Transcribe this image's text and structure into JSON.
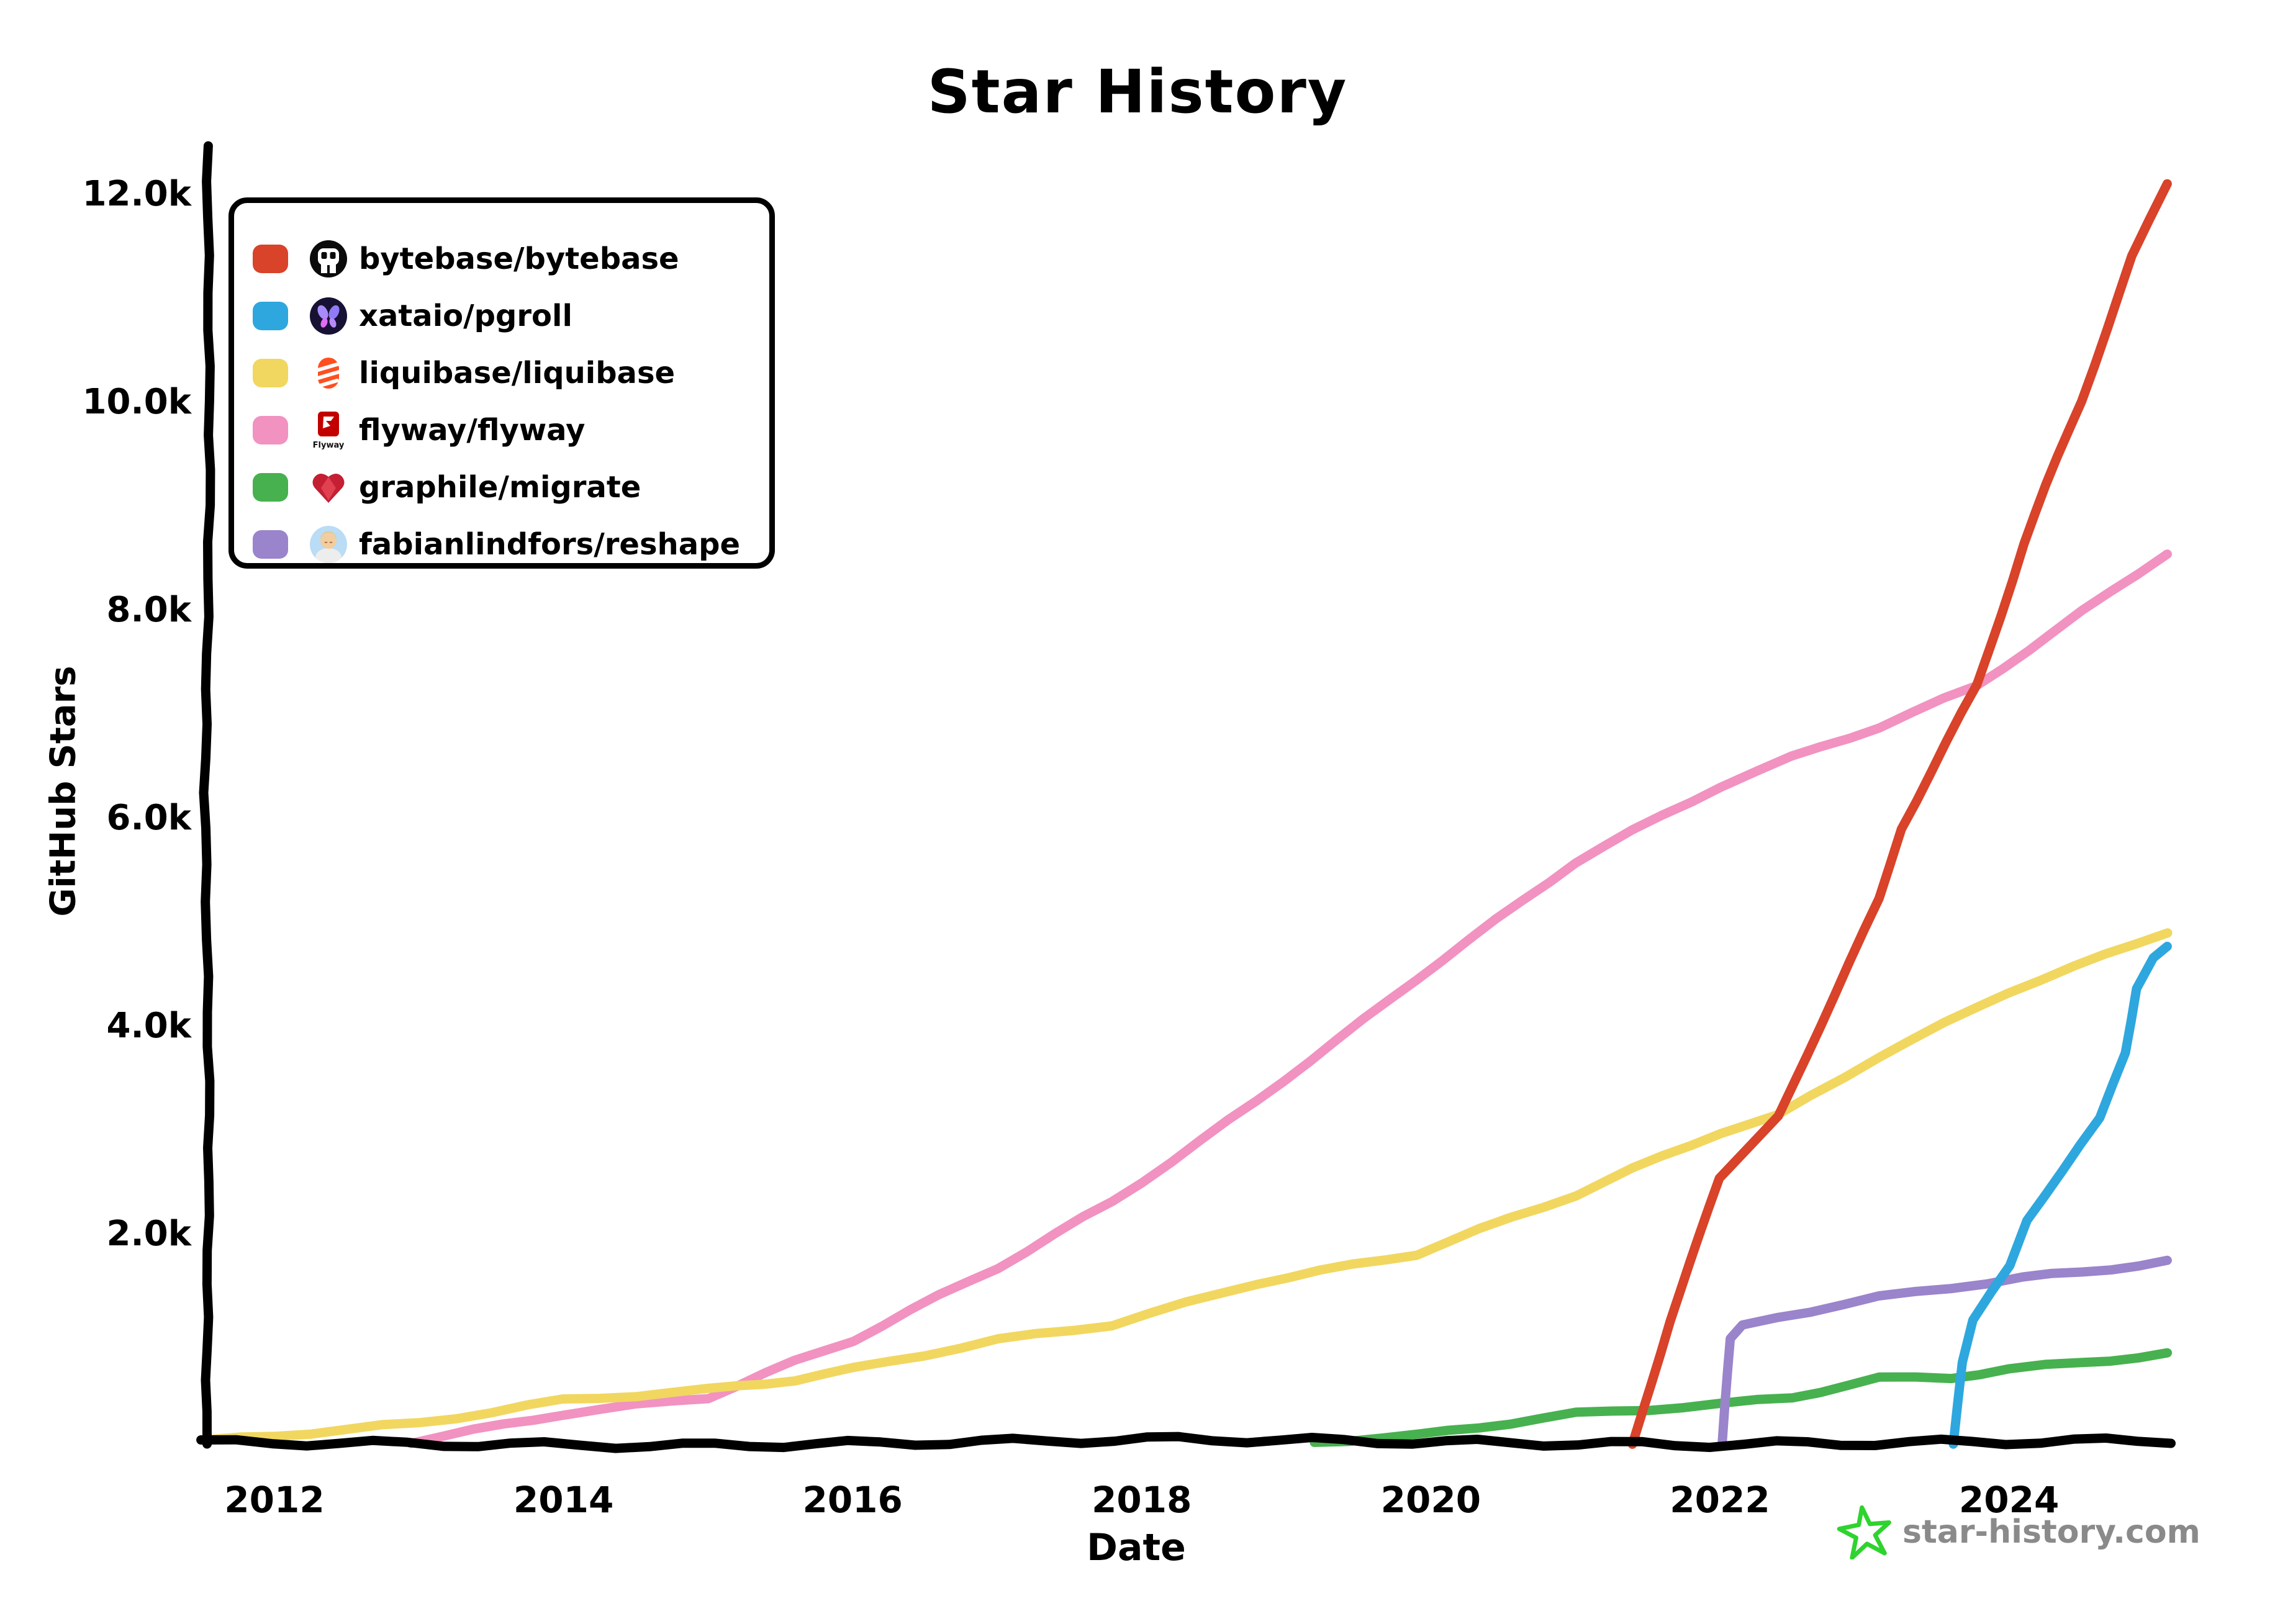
{
  "title": "Star History",
  "axes": {
    "x_label": "Date",
    "y_label": "GitHub Stars",
    "x_ticks": [
      {
        "label": "2012",
        "year": 2012
      },
      {
        "label": "2014",
        "year": 2014
      },
      {
        "label": "2016",
        "year": 2016
      },
      {
        "label": "2018",
        "year": 2018
      },
      {
        "label": "2020",
        "year": 2020
      },
      {
        "label": "2022",
        "year": 2022
      },
      {
        "label": "2024",
        "year": 2024
      }
    ],
    "y_ticks": [
      {
        "label": "2.0k",
        "value": 2
      },
      {
        "label": "4.0k",
        "value": 4
      },
      {
        "label": "6.0k",
        "value": 6
      },
      {
        "label": "8.0k",
        "value": 8
      },
      {
        "label": "10.0k",
        "value": 10
      },
      {
        "label": "12.0k",
        "value": 12
      }
    ]
  },
  "watermark": {
    "text": "star-history.com",
    "text_color": "#8a8a8a",
    "star_color": "#2fd32f"
  },
  "colors": {
    "axis": "#000000",
    "background": "#ffffff"
  },
  "chart_data": {
    "type": "line",
    "title": "Star History",
    "xlabel": "Date",
    "ylabel": "GitHub Stars",
    "xlim": [
      2011.5,
      2025.3
    ],
    "ylim": [
      0,
      12.4
    ],
    "grid": false,
    "legend_position": "top-left",
    "units": "thousands of stars",
    "series": [
      {
        "id": "bytebase",
        "label": "bytebase/bytebase",
        "color": "#d8432a",
        "icon": "bytebase-logo-icon",
        "points": [
          [
            2021.4,
            0
          ],
          [
            2021.65,
            1.17
          ],
          [
            2022.0,
            2.57
          ],
          [
            2022.4,
            3.14
          ],
          [
            2023.1,
            5.23
          ],
          [
            2023.25,
            5.92
          ],
          [
            2023.78,
            7.29
          ],
          [
            2024.1,
            8.66
          ],
          [
            2024.5,
            10.04
          ],
          [
            2024.85,
            11.41
          ],
          [
            2025.1,
            12.13
          ]
        ]
      },
      {
        "id": "pgroll",
        "label": "xataio/pgroll",
        "color": "#2ea7de",
        "icon": "xata-butterfly-icon",
        "points": [
          [
            2023.62,
            0
          ],
          [
            2023.68,
            0.8
          ],
          [
            2023.75,
            1.2
          ],
          [
            2023.87,
            1.45
          ],
          [
            2024.0,
            1.7
          ],
          [
            2024.12,
            2.14
          ],
          [
            2024.5,
            2.89
          ],
          [
            2024.63,
            3.13
          ],
          [
            2024.8,
            3.75
          ],
          [
            2024.88,
            4.39
          ],
          [
            2025.0,
            4.69
          ],
          [
            2025.1,
            4.79
          ]
        ]
      },
      {
        "id": "liquibase",
        "label": "liquibase/liquibase",
        "color": "#f1d75f",
        "icon": "liquibase-logo-icon",
        "points": [
          [
            2011.55,
            0.03
          ],
          [
            2012,
            0.08
          ],
          [
            2013,
            0.2
          ],
          [
            2014,
            0.42
          ],
          [
            2015,
            0.52
          ],
          [
            2015.6,
            0.62
          ],
          [
            2016,
            0.72
          ],
          [
            2017,
            1.0
          ],
          [
            2017.8,
            1.15
          ],
          [
            2018.8,
            1.55
          ],
          [
            2019.9,
            1.83
          ],
          [
            2021,
            2.4
          ],
          [
            2022,
            3.0
          ],
          [
            2022.4,
            3.15
          ],
          [
            2023.1,
            3.73
          ],
          [
            2024,
            4.35
          ],
          [
            2025.1,
            4.93
          ]
        ]
      },
      {
        "id": "flyway",
        "label": "flyway/flyway",
        "color": "#f192c1",
        "icon": "flyway-logo-icon",
        "points": [
          [
            2012.95,
            0.02
          ],
          [
            2014,
            0.29
          ],
          [
            2015,
            0.45
          ],
          [
            2015.6,
            0.79
          ],
          [
            2016,
            1.0
          ],
          [
            2017,
            1.7
          ],
          [
            2017.8,
            2.33
          ],
          [
            2018.8,
            3.3
          ],
          [
            2019.9,
            4.47
          ],
          [
            2021,
            5.6
          ],
          [
            2022,
            6.33
          ],
          [
            2022.5,
            6.6
          ],
          [
            2023.1,
            6.9
          ],
          [
            2023.78,
            7.29
          ],
          [
            2024.5,
            8.0
          ],
          [
            2025.1,
            8.57
          ]
        ]
      },
      {
        "id": "graphile",
        "label": "graphile/migrate",
        "color": "#47b14f",
        "icon": "graphile-heart-icon",
        "points": [
          [
            2019.2,
            0.02
          ],
          [
            2019.9,
            0.08
          ],
          [
            2021,
            0.29
          ],
          [
            2022,
            0.38
          ],
          [
            2022.5,
            0.45
          ],
          [
            2023.1,
            0.63
          ],
          [
            2023.6,
            0.64
          ],
          [
            2024,
            0.72
          ],
          [
            2024.5,
            0.78
          ],
          [
            2025.1,
            0.87
          ]
        ]
      },
      {
        "id": "reshape",
        "label": "fabianlindfors/reshape",
        "color": "#9a84cb",
        "icon": "avatar-icon",
        "points": [
          [
            2022.02,
            0
          ],
          [
            2022.07,
            1.0
          ],
          [
            2022.15,
            1.13
          ],
          [
            2022.4,
            1.22
          ],
          [
            2023.1,
            1.41
          ],
          [
            2024.1,
            1.6
          ],
          [
            2024.5,
            1.65
          ],
          [
            2025.1,
            1.76
          ]
        ]
      }
    ]
  }
}
